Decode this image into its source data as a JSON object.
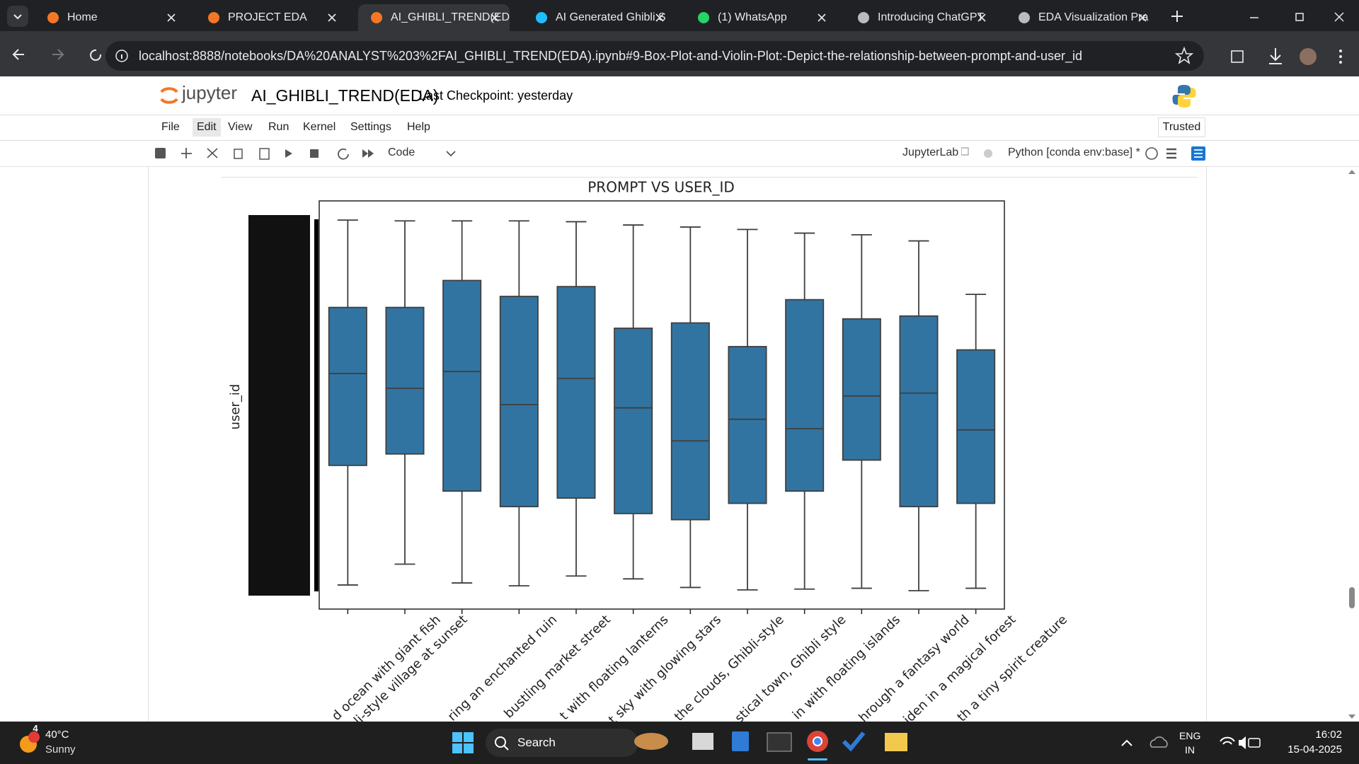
{
  "browser": {
    "tabs": [
      "Home",
      "PROJECT EDA",
      "AI_GHIBLI_TREND(ED",
      "AI Generated Ghibli S",
      "(1) WhatsApp",
      "Introducing ChatGPT",
      "EDA Visualization Pra"
    ],
    "url": "localhost:8888/notebooks/DA%20ANALYST%203%2FAI_GHIBLI_TREND(EDA).ipynb#9-Box-Plot-and-Violin-Plot:-Depict-the-relationship-between-prompt-and-user_id"
  },
  "jupyter": {
    "logo": "jupyter",
    "notebook_title": "AI_GHIBLI_TREND(EDA)",
    "checkpoint": "Last Checkpoint: yesterday",
    "menu": [
      "File",
      "Edit",
      "View",
      "Run",
      "Kernel",
      "Settings",
      "Help"
    ],
    "trusted": "Trusted",
    "cell_type": "Code",
    "jupyterlab": "JupyterLab",
    "kernel": "Python [conda env:base] *"
  },
  "chart_data": {
    "type": "box",
    "title": "PROMPT VS USER_ID",
    "y_label": "user_id",
    "categories": [
      "d ocean with giant fish",
      "li-style village at sunset",
      "ring an enchanted ruin",
      "bustling market street",
      "t with floating lanterns",
      "t sky with glowing stars",
      "the clouds, Ghibli-style",
      "stical town, Ghibli style",
      "in with floating islands",
      "hrough a fantasy world",
      "iden in a magical forest",
      "th a tiny spirit creature"
    ],
    "color": "#3274a1",
    "whisker_high": [
      95.3,
      95.1,
      95.1,
      95.1,
      94.9,
      94.1,
      93.6,
      93.0,
      92.1,
      91.7,
      90.2,
      77.1
    ],
    "q3": [
      73.9,
      73.9,
      80.5,
      76.6,
      79.0,
      68.8,
      70.1,
      64.3,
      75.8,
      71.1,
      71.8,
      63.5
    ],
    "median": [
      57.7,
      54.1,
      58.2,
      50.1,
      56.5,
      49.3,
      41.2,
      46.5,
      44.2,
      52.2,
      52.9,
      43.9
    ],
    "q1": [
      35.2,
      38.0,
      28.9,
      25.1,
      27.2,
      23.4,
      21.9,
      25.9,
      28.9,
      36.5,
      25.1,
      25.9
    ],
    "whisker_low": [
      5.9,
      11.0,
      6.4,
      5.7,
      8.1,
      7.4,
      5.3,
      4.7,
      4.9,
      5.1,
      4.5,
      5.1
    ],
    "ylim": [
      0,
      100
    ]
  },
  "taskbar": {
    "weather_badge": "4",
    "temperature": "40°C",
    "condition": "Sunny",
    "search": "Search",
    "language": "ENG",
    "region": "IN",
    "time": "16:02",
    "date": "15-04-2025"
  }
}
